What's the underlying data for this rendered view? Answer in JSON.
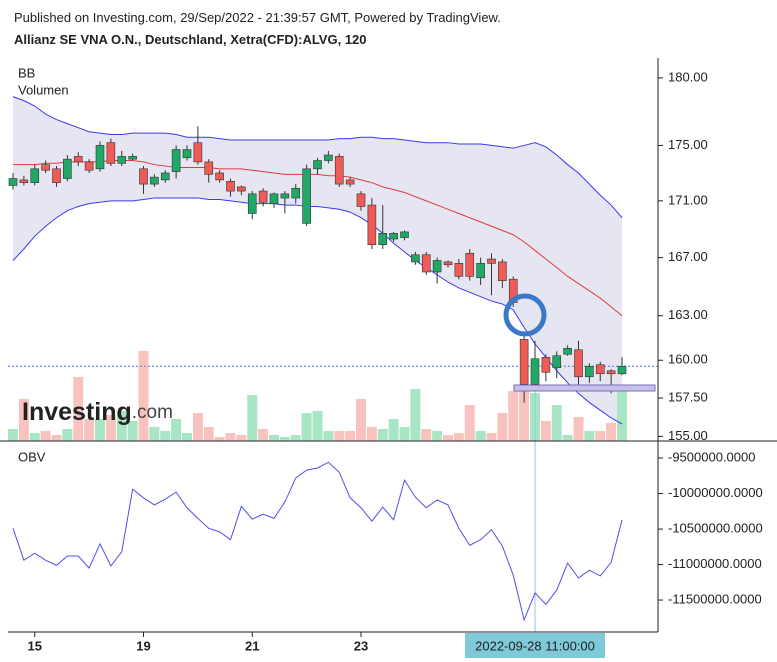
{
  "header": {
    "published": "Published on Investing.com, 29/Sep/2022 - 21:39:57 GMT, Powered by TradingView.",
    "title": "Allianz SE VNA O.N., Deutschland, Xetra(CFD):ALVG, 120"
  },
  "chart_data": [
    {
      "type": "candlestick",
      "labels": [
        "BB",
        "Volumen"
      ],
      "watermark": [
        "Investing",
        ".com"
      ],
      "categories": [
        null,
        null,
        "15",
        null,
        null,
        null,
        null,
        null,
        null,
        null,
        null,
        null,
        "19",
        null,
        null,
        null,
        null,
        null,
        null,
        null,
        null,
        null,
        "21",
        null,
        null,
        null,
        null,
        null,
        null,
        null,
        null,
        null,
        "23",
        null,
        null,
        null,
        null,
        null,
        null,
        null,
        null,
        null,
        null,
        null,
        null,
        null,
        null,
        null,
        "2022-09-28 11:00:00",
        null,
        null,
        null,
        null,
        null,
        null,
        null,
        null
      ],
      "crosshair_index": 48,
      "open": [
        172.1,
        172.5,
        172.3,
        173.6,
        173.3,
        172.6,
        174.2,
        173.8,
        173.3,
        175.2,
        173.7,
        174.0,
        173.3,
        172.2,
        172.5,
        173.1,
        174.1,
        175.2,
        173.8,
        173.0,
        172.4,
        172.0,
        170.1,
        171.7,
        170.8,
        171.2,
        171.2,
        169.4,
        173.3,
        173.9,
        174.2,
        172.5,
        171.5,
        170.7,
        167.9,
        168.3,
        168.4,
        166.7,
        167.2,
        166.0,
        166.7,
        166.6,
        167.3,
        165.6,
        166.9,
        166.7,
        165.5,
        161.4,
        158.4,
        160.2,
        159.5,
        160.4,
        160.7,
        158.9,
        159.7,
        159.3,
        159.1
      ],
      "high": [
        173.0,
        172.8,
        173.6,
        173.9,
        173.5,
        174.3,
        174.5,
        174.0,
        175.3,
        175.5,
        174.6,
        174.4,
        173.5,
        172.9,
        173.2,
        175.0,
        175.0,
        176.4,
        174.0,
        173.2,
        172.6,
        172.1,
        171.7,
        171.9,
        171.6,
        171.7,
        172.2,
        173.6,
        174.1,
        174.6,
        174.4,
        172.7,
        171.7,
        171.2,
        170.7,
        168.8,
        168.9,
        167.4,
        167.4,
        167.0,
        166.8,
        166.9,
        167.6,
        167.0,
        167.3,
        166.9,
        165.7,
        161.9,
        161.3,
        160.4,
        160.6,
        161.0,
        161.3,
        159.8,
        159.9,
        159.4,
        160.2
      ],
      "low": [
        171.8,
        172.1,
        172.1,
        173.0,
        172.0,
        172.4,
        173.5,
        173.0,
        173.1,
        173.5,
        173.5,
        173.9,
        171.5,
        172.0,
        172.3,
        172.6,
        173.9,
        173.6,
        172.3,
        172.3,
        171.3,
        171.4,
        169.7,
        170.6,
        170.5,
        170.1,
        170.8,
        169.2,
        172.9,
        173.7,
        172.0,
        172.0,
        170.3,
        167.6,
        167.6,
        168.1,
        168.2,
        166.5,
        165.8,
        165.2,
        166.3,
        165.5,
        165.4,
        165.1,
        164.4,
        164.9,
        163.6,
        157.2,
        156.7,
        158.6,
        158.8,
        160.3,
        158.0,
        158.5,
        158.6,
        157.8,
        159.0
      ],
      "close": [
        172.6,
        172.3,
        173.3,
        173.2,
        172.3,
        174.0,
        173.8,
        173.2,
        175.0,
        173.7,
        174.2,
        174.2,
        172.2,
        172.7,
        173.0,
        174.7,
        174.7,
        173.8,
        172.9,
        172.5,
        171.7,
        171.7,
        171.5,
        170.9,
        171.5,
        171.5,
        171.9,
        173.3,
        173.9,
        174.3,
        172.2,
        172.2,
        170.6,
        167.9,
        168.7,
        168.7,
        168.8,
        167.2,
        166.0,
        166.8,
        166.5,
        165.7,
        165.7,
        166.6,
        166.6,
        165.4,
        163.9,
        158.4,
        160.1,
        159.2,
        160.3,
        160.8,
        158.9,
        159.6,
        159.1,
        159.1,
        159.6
      ],
      "up_color": "#1fa866",
      "down_color": "#ef5b56",
      "up_volume_color": "#a7e5c5",
      "down_volume_color": "#f8c3bf",
      "band_fill": "#e6e6f2",
      "series": [
        {
          "color": "#3a3aee",
          "values": [
            178.6,
            178.3,
            177.9,
            177.3,
            176.9,
            176.6,
            176.3,
            176.0,
            175.9,
            175.8,
            175.8,
            175.9,
            175.9,
            175.9,
            175.9,
            175.8,
            175.6,
            175.6,
            175.6,
            175.5,
            175.4,
            175.4,
            175.4,
            175.4,
            175.4,
            175.4,
            175.4,
            175.4,
            175.4,
            175.4,
            175.5,
            175.5,
            175.6,
            175.6,
            175.5,
            175.5,
            175.4,
            175.3,
            175.2,
            175.2,
            175.2,
            175.1,
            175.1,
            175.1,
            175.0,
            174.9,
            174.8,
            175.0,
            175.2,
            174.9,
            174.3,
            173.6,
            173.0,
            172.2,
            171.4,
            170.7,
            169.8
          ]
        },
        {
          "color": "#e33b3b",
          "values": [
            173.6,
            173.6,
            173.6,
            173.7,
            173.7,
            173.8,
            173.8,
            173.8,
            173.8,
            173.9,
            173.9,
            173.9,
            173.8,
            173.6,
            173.5,
            173.4,
            173.4,
            173.4,
            173.4,
            173.3,
            173.3,
            173.3,
            173.2,
            173.1,
            173.0,
            172.9,
            172.9,
            172.9,
            172.9,
            172.8,
            172.8,
            172.7,
            172.5,
            172.3,
            172.0,
            171.8,
            171.6,
            171.3,
            171.0,
            170.7,
            170.4,
            170.1,
            169.8,
            169.5,
            169.2,
            168.9,
            168.6,
            168.1,
            167.5,
            166.9,
            166.3,
            165.7,
            165.2,
            164.7,
            164.2,
            163.6,
            163.0
          ]
        },
        {
          "color": "#3a3aee",
          "values": [
            166.8,
            167.6,
            168.5,
            169.2,
            169.8,
            170.3,
            170.6,
            170.8,
            170.9,
            171.0,
            171.0,
            171.0,
            171.1,
            171.2,
            171.2,
            171.2,
            171.2,
            171.2,
            171.1,
            171.1,
            171.0,
            170.9,
            170.8,
            170.8,
            170.8,
            170.7,
            170.7,
            170.6,
            170.6,
            170.5,
            170.4,
            170.2,
            169.8,
            169.3,
            168.7,
            168.0,
            167.4,
            166.8,
            166.3,
            165.8,
            165.3,
            164.9,
            164.6,
            164.3,
            164.0,
            163.8,
            163.4,
            162.2,
            161.1,
            160.2,
            159.3,
            158.5,
            157.8,
            157.2,
            156.7,
            156.2,
            155.8
          ]
        }
      ],
      "volume": [
        12,
        42,
        8,
        10,
        6,
        12,
        64,
        22,
        22,
        26,
        30,
        20,
        90,
        14,
        10,
        22,
        8,
        28,
        14,
        4,
        8,
        6,
        46,
        12,
        6,
        4,
        6,
        28,
        30,
        10,
        10,
        10,
        42,
        14,
        12,
        22,
        14,
        52,
        12,
        10,
        6,
        8,
        36,
        10,
        8,
        28,
        50,
        52,
        48,
        20,
        36,
        6,
        24,
        10,
        10,
        18,
        56
      ],
      "log_scale": true,
      "ylim": [
        154.7,
        181.5
      ],
      "yticks": [
        {
          "value": 155,
          "label": "155.00"
        },
        {
          "value": 157.5,
          "label": "157.50"
        },
        {
          "value": 160,
          "label": "160.00"
        },
        {
          "value": 163,
          "label": "163.00"
        },
        {
          "value": 167,
          "label": "167.00"
        },
        {
          "value": 171,
          "label": "171.00"
        },
        {
          "value": 175,
          "label": "175.00"
        },
        {
          "value": 180,
          "label": "180.00"
        }
      ],
      "last_price_line": true,
      "last_price_color": "#5577dd"
    },
    {
      "type": "line",
      "label": "OBV",
      "color": "#5050e8",
      "values": [
        -10490000,
        -10940000,
        -10840000,
        -10940000,
        -11010000,
        -10880000,
        -10880000,
        -11050000,
        -10710000,
        -11020000,
        -10820000,
        -9940000,
        -10060000,
        -10160000,
        -10080000,
        -9980000,
        -10200000,
        -10350000,
        -10490000,
        -10540000,
        -10650000,
        -10180000,
        -10360000,
        -10290000,
        -10350000,
        -10120000,
        -9780000,
        -9670000,
        -9640000,
        -9560000,
        -9700000,
        -10060000,
        -10200000,
        -10390000,
        -10190000,
        -10370000,
        -9810000,
        -10050000,
        -10200000,
        -10090000,
        -10160000,
        -10490000,
        -10730000,
        -10650000,
        -10510000,
        -10740000,
        -11150000,
        -11780000,
        -11400000,
        -11560000,
        -11360000,
        -10980000,
        -11190000,
        -11080000,
        -11160000,
        -10970000,
        -10370000
      ],
      "ylim": [
        -11950000,
        -9260000
      ],
      "yticks": [
        {
          "value": -9500000,
          "label": "-9500000.0000"
        },
        {
          "value": -10000000,
          "label": "-10000000.0000"
        },
        {
          "value": -10500000,
          "label": "-10500000.0000"
        },
        {
          "value": -11000000,
          "label": "-11000000.0000"
        },
        {
          "value": -11500000,
          "label": "-11500000.0000"
        }
      ]
    }
  ]
}
